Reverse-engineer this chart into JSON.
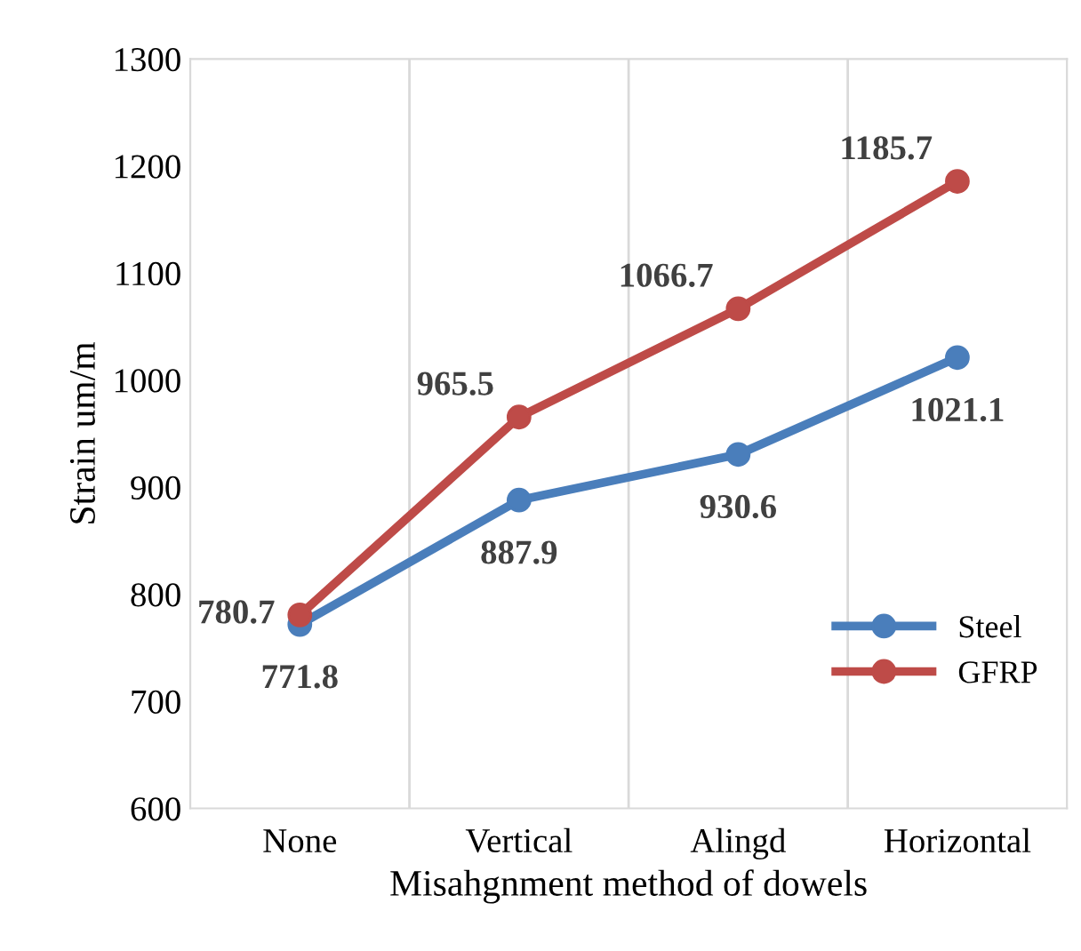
{
  "chart_data": {
    "type": "line",
    "xlabel": "Misahgnment method of dowels",
    "ylabel": "Strain um/m",
    "categories": [
      "None",
      "Vertical",
      "Alingd",
      "Horizontal"
    ],
    "series": [
      {
        "name": "Steel",
        "color": "#4a7ebb",
        "values": [
          771.8,
          887.9,
          930.6,
          1021.1
        ]
      },
      {
        "name": "GFRP",
        "color": "#be4b48",
        "values": [
          780.7,
          965.5,
          1066.7,
          1185.7
        ]
      }
    ],
    "ylim": [
      600,
      1300
    ],
    "yticks": [
      600,
      700,
      800,
      900,
      1000,
      1100,
      1200,
      1300
    ],
    "grid": "x",
    "legend": "lower right",
    "marker": "circle",
    "line_style": "solid",
    "data_labels": true
  }
}
